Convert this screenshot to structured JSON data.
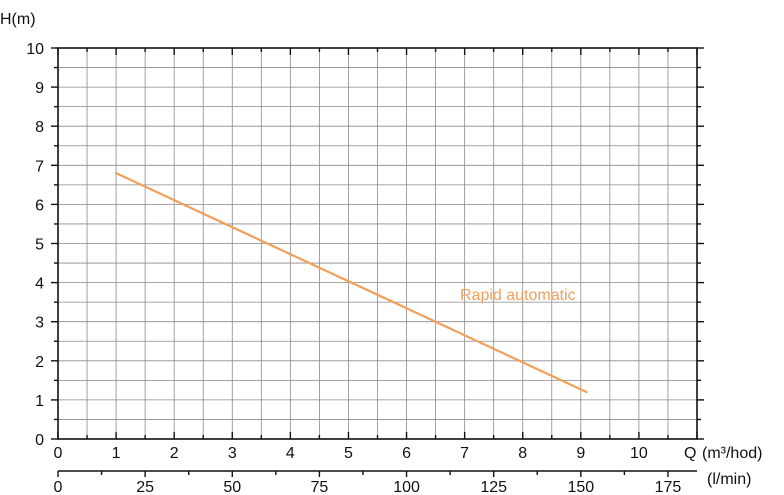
{
  "chart_data": {
    "type": "line",
    "ylabel": "H(m)",
    "xlabel": "Q",
    "xunit": "(m³/hod)",
    "xlabel_secondary": "(l/min)",
    "xlim": [
      0,
      11
    ],
    "ylim": [
      0,
      10
    ],
    "xticks": [
      "0",
      "1",
      "2",
      "3",
      "4",
      "5",
      "6",
      "7",
      "8",
      "9",
      "10"
    ],
    "yticks": [
      "0",
      "1",
      "2",
      "3",
      "4",
      "5",
      "6",
      "7",
      "8",
      "9",
      "10"
    ],
    "secondary_xticks": [
      {
        "label": "0",
        "value": 0
      },
      {
        "label": "25",
        "value": 25
      },
      {
        "label": "50",
        "value": 50
      },
      {
        "label": "75",
        "value": 75
      },
      {
        "label": "100",
        "value": 100
      },
      {
        "label": "125",
        "value": 125
      },
      {
        "label": "150",
        "value": 150
      },
      {
        "label": "175",
        "value": 175
      }
    ],
    "grid": true,
    "series": [
      {
        "name": "Rapid automatic",
        "color": "#f0a05a",
        "x": [
          1,
          9.1
        ],
        "y": [
          6.8,
          1.2
        ]
      }
    ]
  }
}
